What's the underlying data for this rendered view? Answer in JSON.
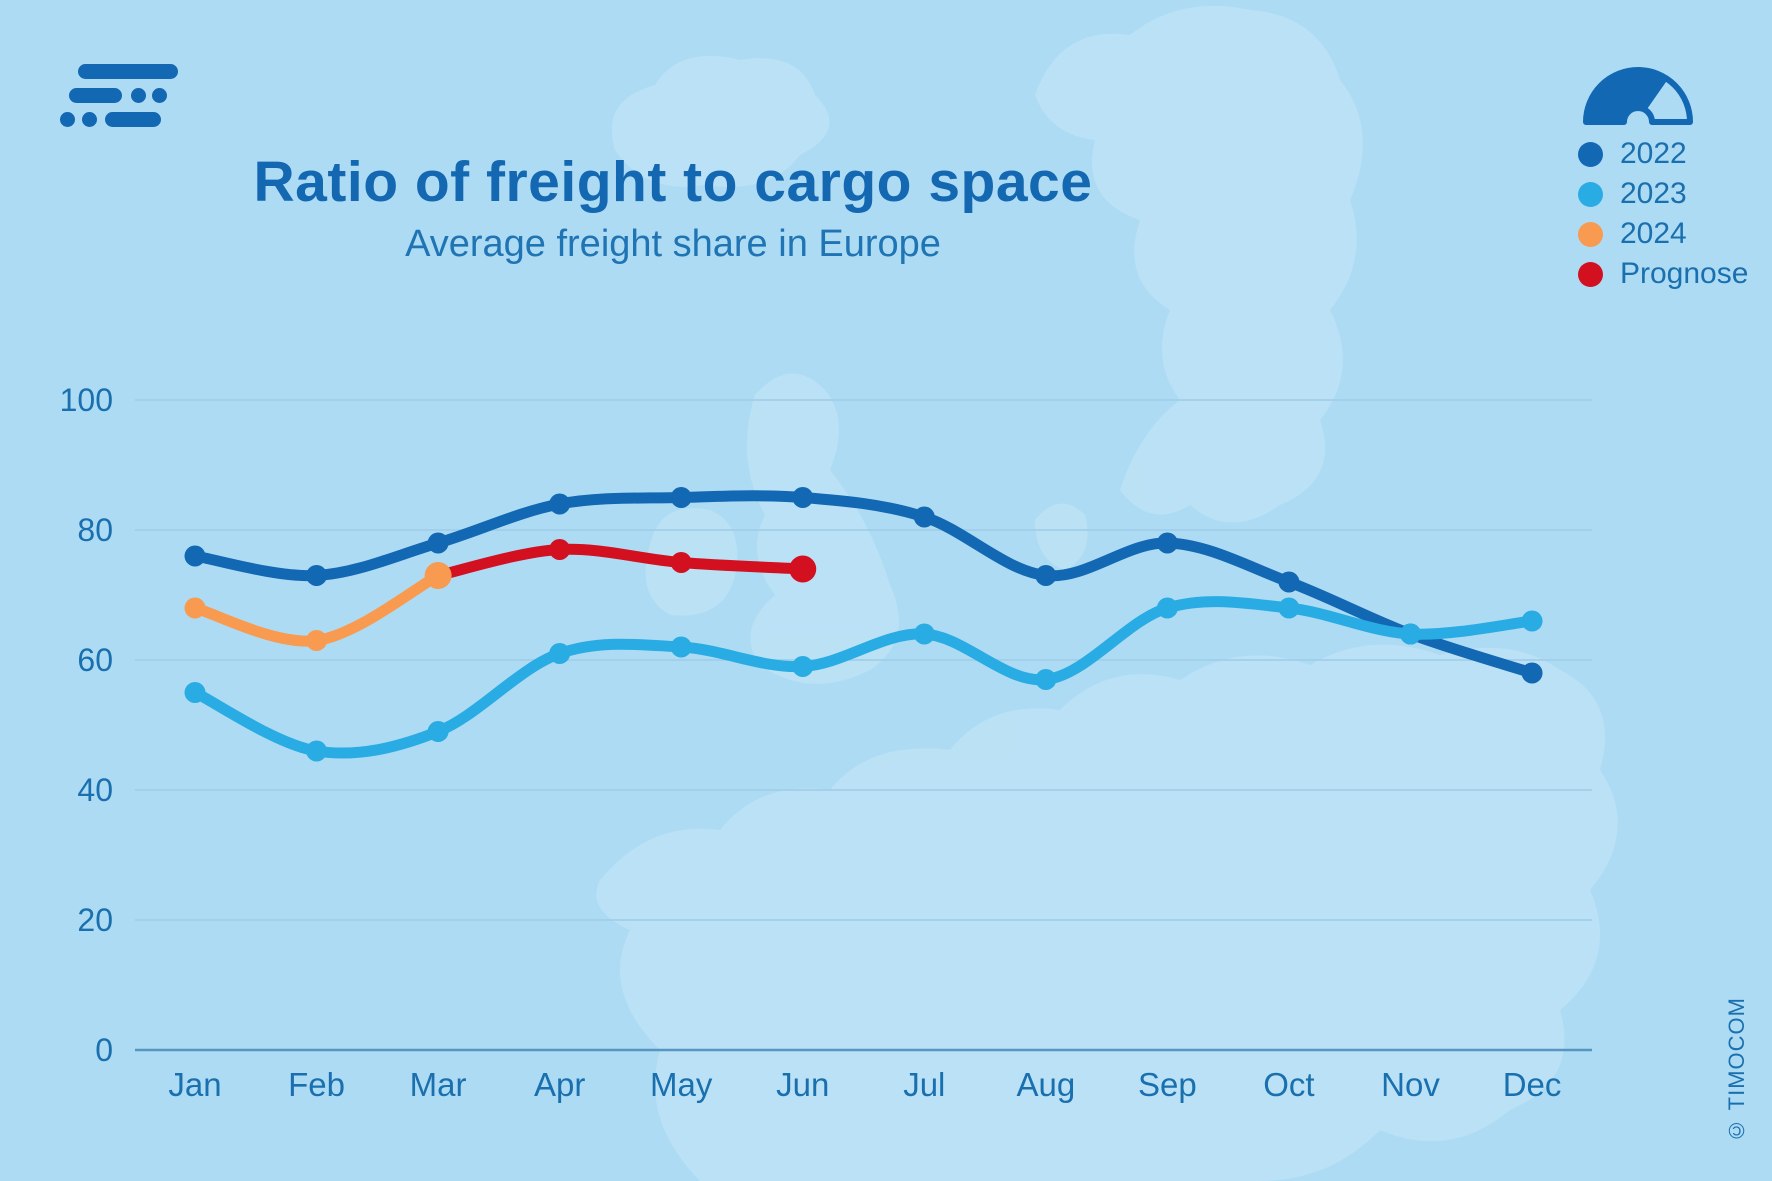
{
  "header": {
    "title": "Ratio of freight to cargo space",
    "subtitle": "Average freight share in Europe"
  },
  "branding": {
    "copyright": "© TIMOCOM"
  },
  "colors": {
    "background": "#aedbf4",
    "title_text": "#1368b1",
    "axis_text": "#1a70ae",
    "gridline": "#9dcbe5",
    "axis_line": "#5795c3",
    "series_2022": "#1268b3",
    "series_2023": "#29ace3",
    "series_2024": "#f89b51",
    "series_prognose": "#d21020"
  },
  "legend": [
    {
      "label": "2022",
      "color": "#1268b3"
    },
    {
      "label": "2023",
      "color": "#29ace3"
    },
    {
      "label": "2024",
      "color": "#f89b51"
    },
    {
      "label": "Prognose",
      "color": "#d21020"
    }
  ],
  "chart_data": {
    "type": "line",
    "title": "Ratio of freight to cargo space",
    "subtitle": "Average freight share in Europe",
    "xlabel": "",
    "ylabel": "",
    "categories": [
      "Jan",
      "Feb",
      "Mar",
      "Apr",
      "May",
      "Jun",
      "Jul",
      "Aug",
      "Sep",
      "Oct",
      "Nov",
      "Dec"
    ],
    "y_ticks": [
      0,
      20,
      40,
      60,
      80,
      100
    ],
    "ylim": [
      0,
      100
    ],
    "grid": true,
    "legend_position": "top-right",
    "series": [
      {
        "name": "2022",
        "color": "#1268b3",
        "values": [
          76,
          73,
          78,
          84,
          85,
          85,
          82,
          73,
          78,
          72,
          64,
          58
        ],
        "end_emphasis": false
      },
      {
        "name": "2023",
        "color": "#29ace3",
        "values": [
          55,
          46,
          49,
          61,
          62,
          59,
          64,
          57,
          68,
          68,
          64,
          66
        ],
        "end_emphasis": false
      },
      {
        "name": "Prognose",
        "color": "#d21020",
        "values": [
          null,
          null,
          73,
          77,
          75,
          74,
          null,
          null,
          null,
          null,
          null,
          null
        ],
        "end_emphasis": true
      },
      {
        "name": "2024",
        "color": "#f89b51",
        "values": [
          68,
          63,
          73,
          null,
          null,
          null,
          null,
          null,
          null,
          null,
          null,
          null
        ],
        "end_emphasis": true
      }
    ]
  }
}
